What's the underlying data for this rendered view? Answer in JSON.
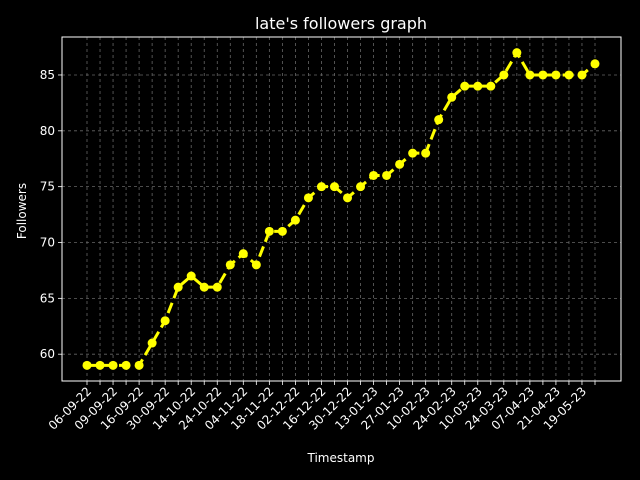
{
  "chart_data": {
    "type": "line",
    "title": "late's followers graph",
    "xlabel": "Timestamp",
    "ylabel": "Followers",
    "tick_labels": [
      "06-09-22",
      "09-09-22",
      "16-09-22",
      "30-09-22",
      "14-10-22",
      "24-10-22",
      "04-11-22",
      "18-11-22",
      "02-12-22",
      "16-12-22",
      "30-12-22",
      "13-01-23",
      "27-01-23",
      "10-02-23",
      "24-02-23",
      "10-03-23",
      "24-03-23",
      "07-04-23",
      "21-04-23",
      "19-05-23"
    ],
    "tick_every": 2,
    "values": [
      59,
      59,
      59,
      59,
      59,
      61,
      63,
      66,
      67,
      66,
      66,
      68,
      69,
      68,
      71,
      71,
      72,
      74,
      75,
      75,
      74,
      75,
      76,
      76,
      77,
      78,
      78,
      81,
      83,
      84,
      84,
      84,
      85,
      87,
      85,
      85,
      85,
      85,
      85,
      86
    ],
    "yticks": [
      60,
      65,
      70,
      75,
      80,
      85
    ],
    "ylim": [
      57.6,
      88.4
    ],
    "grid": true,
    "line_style": "dashed",
    "marker": "circle",
    "colors": {
      "background": "#000000",
      "line": "#ffff00",
      "grid": "#666666",
      "text": "#ffffff"
    }
  }
}
